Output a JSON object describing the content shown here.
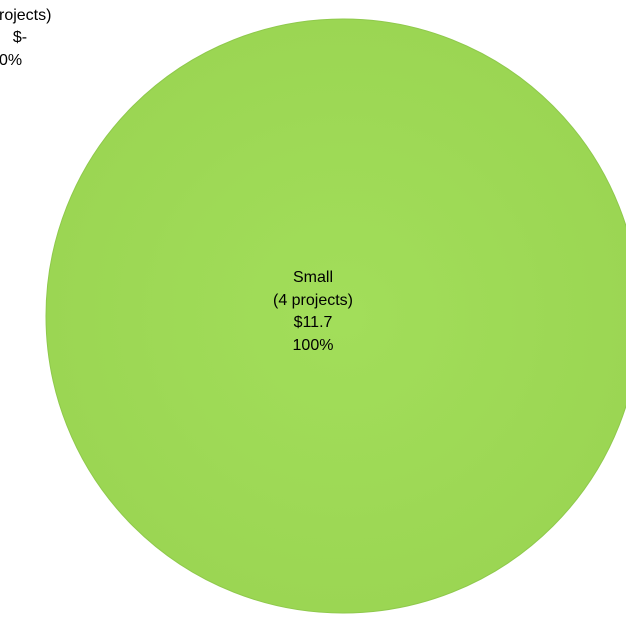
{
  "chart_data": {
    "type": "pie",
    "title": "",
    "slices": [
      {
        "name": "Small",
        "count_label": "(4 projects)",
        "value_label": "$11.7",
        "percent_label": "100%",
        "value": 11.7,
        "percent": 100,
        "color": "#9FDD57"
      },
      {
        "name": "",
        "count_label": "rojects)",
        "value_label": "$-",
        "percent_label": "0%",
        "value": 0,
        "percent": 0,
        "color": "#4F81BD"
      }
    ]
  }
}
